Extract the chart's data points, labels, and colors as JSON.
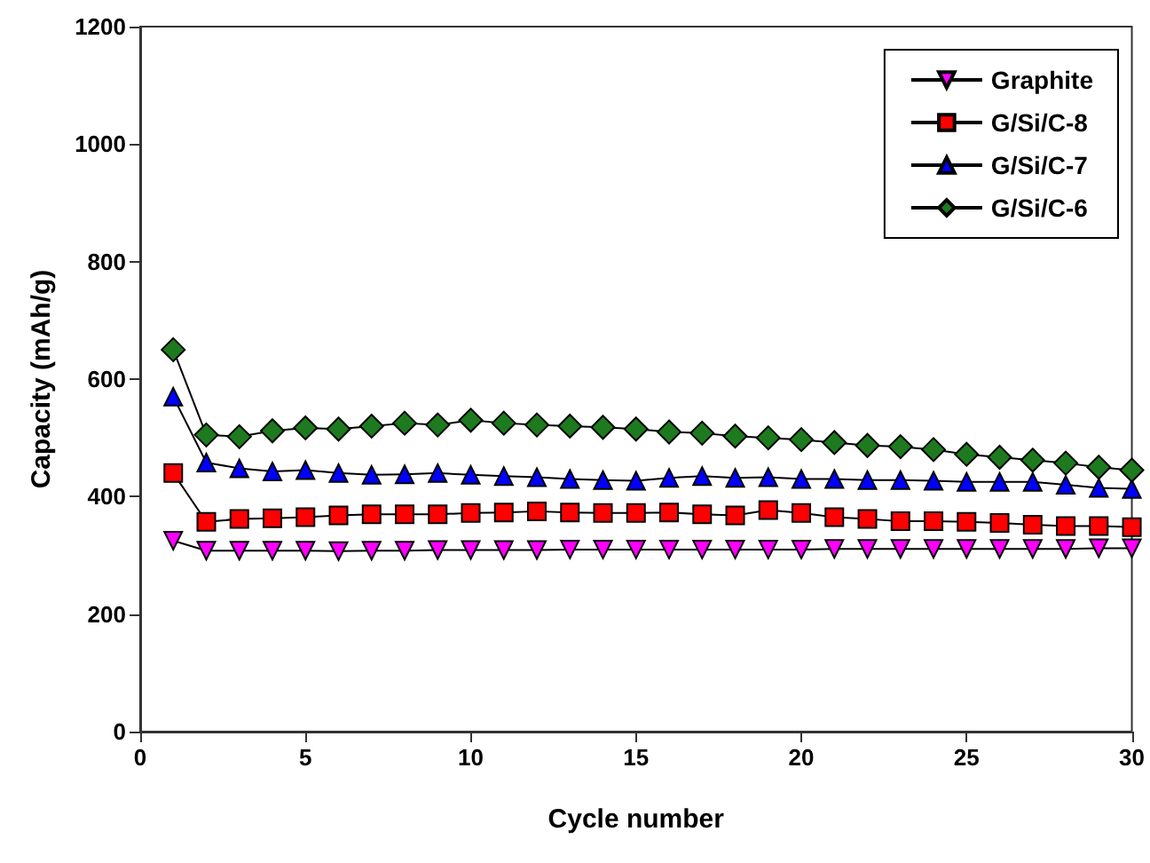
{
  "chart_data": {
    "type": "line",
    "xlabel": "Cycle number",
    "ylabel": "Capacity (mAh/g)",
    "x": [
      1,
      2,
      3,
      4,
      5,
      6,
      7,
      8,
      9,
      10,
      11,
      12,
      13,
      14,
      15,
      16,
      17,
      18,
      19,
      20,
      21,
      22,
      23,
      24,
      25,
      26,
      27,
      28,
      29,
      30
    ],
    "xlim": [
      0,
      30
    ],
    "xticks": [
      0,
      5,
      10,
      15,
      20,
      25,
      30
    ],
    "ylim": [
      0,
      1200
    ],
    "yticks": [
      0,
      200,
      400,
      600,
      800,
      1000,
      1200
    ],
    "grid": false,
    "legend": "top right",
    "line_style": "solid",
    "series": [
      {
        "name": "Graphite",
        "color": "#ff00ff",
        "marker": "triangle-down",
        "values": [
          325,
          308,
          308,
          308,
          308,
          307,
          308,
          308,
          309,
          309,
          309,
          309,
          310,
          310,
          310,
          310,
          310,
          310,
          310,
          310,
          311,
          311,
          311,
          311,
          311,
          311,
          311,
          311,
          312,
          312
        ]
      },
      {
        "name": "G/Si/C-8",
        "color": "#ff0000",
        "marker": "square",
        "values": [
          440,
          357,
          362,
          363,
          365,
          368,
          370,
          370,
          370,
          372,
          373,
          375,
          373,
          372,
          372,
          373,
          370,
          368,
          377,
          372,
          365,
          362,
          358,
          358,
          357,
          355,
          352,
          350,
          350,
          348
        ]
      },
      {
        "name": "G/Si/C-7",
        "color": "#0000ff",
        "marker": "triangle",
        "values": [
          570,
          458,
          448,
          443,
          445,
          440,
          437,
          438,
          440,
          437,
          435,
          433,
          430,
          428,
          427,
          432,
          435,
          432,
          433,
          430,
          430,
          428,
          428,
          427,
          425,
          425,
          425,
          420,
          415,
          413
        ]
      },
      {
        "name": "G/Si/C-6",
        "color": "#1e7a1e",
        "marker": "diamond",
        "values": [
          650,
          505,
          502,
          512,
          517,
          515,
          520,
          525,
          522,
          530,
          525,
          522,
          520,
          518,
          515,
          510,
          508,
          503,
          500,
          497,
          492,
          487,
          485,
          480,
          472,
          467,
          462,
          457,
          450,
          445
        ]
      }
    ]
  }
}
